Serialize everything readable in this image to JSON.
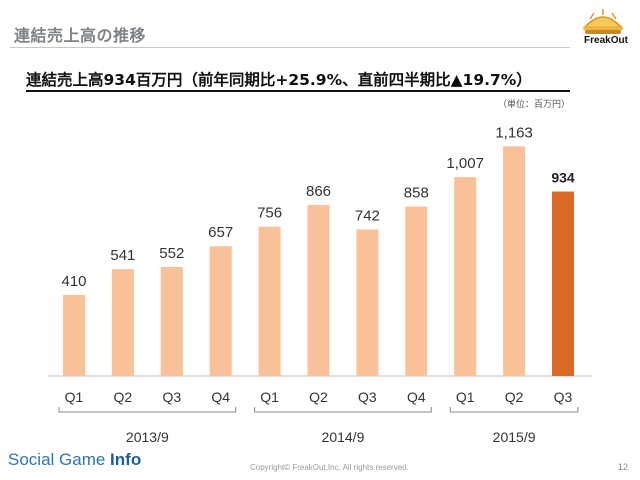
{
  "slide": {
    "title": "連結売上高の推移",
    "headline": "連結売上高934百万円（前年同期比+25.9%、直前四半期比▲19.7%）",
    "unit_note": "（単位：百万円）",
    "logo_text": "FreakOut",
    "brand_left": "Social Game ",
    "brand_right": "Info",
    "copyright": "Copyright© FreakOut,Inc. All rights reserved.",
    "page_number": "12"
  },
  "colors": {
    "bar": "#f9c197",
    "highlight_bar": "#dc6a24",
    "axis": "#c0c0c0"
  },
  "chart_data": {
    "type": "bar",
    "categories": [
      "Q1",
      "Q2",
      "Q3",
      "Q4",
      "Q1",
      "Q2",
      "Q3",
      "Q4",
      "Q1",
      "Q2",
      "Q3"
    ],
    "values": [
      410,
      541,
      552,
      657,
      756,
      866,
      742,
      858,
      1007,
      1163,
      934
    ],
    "value_labels": [
      "410",
      "541",
      "552",
      "657",
      "756",
      "866",
      "742",
      "858",
      "1,007",
      "1,163",
      "934"
    ],
    "highlight_index": 10,
    "groups": [
      {
        "label": "2013/9",
        "start": 0,
        "end": 3
      },
      {
        "label": "2014/9",
        "start": 4,
        "end": 7
      },
      {
        "label": "2015/9",
        "start": 8,
        "end": 10
      }
    ],
    "ylim": [
      0,
      1200
    ],
    "grid": false
  }
}
